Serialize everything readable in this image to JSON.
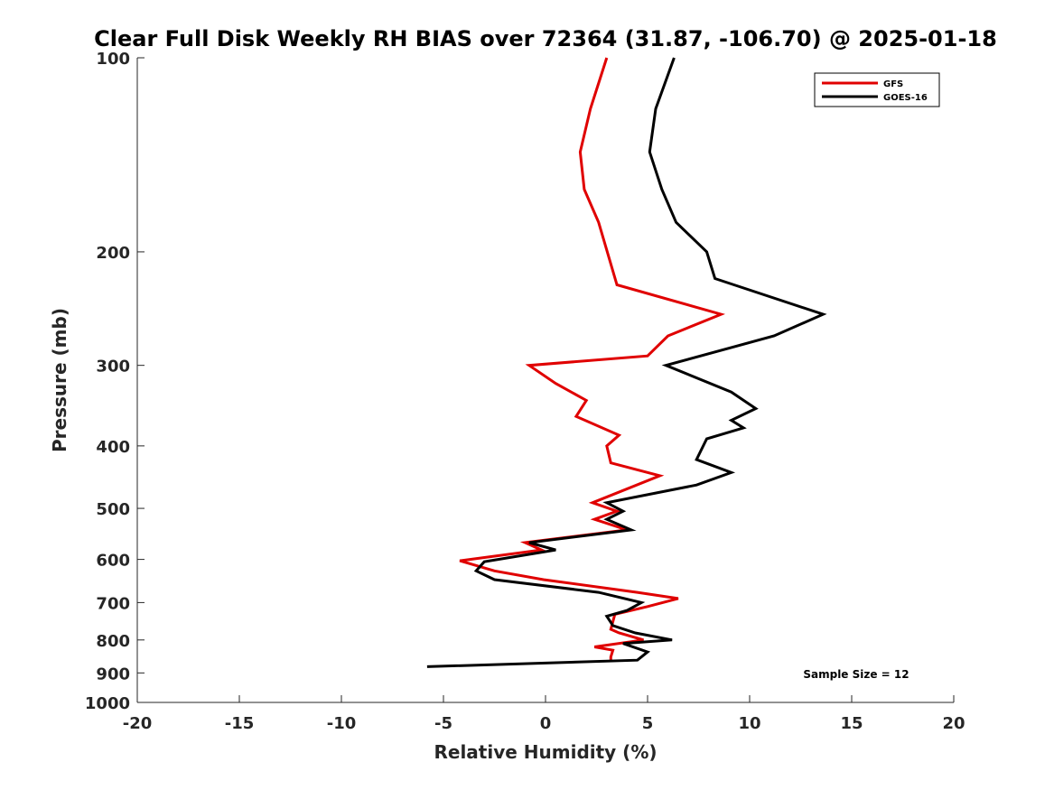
{
  "chart_data": {
    "type": "line",
    "title": "Clear Full Disk Weekly RH BIAS over 72364 (31.87, -106.70) @ 2025-01-18",
    "xlabel": "Relative Humidity (%)",
    "ylabel": "Pressure (mb)",
    "xlim": [
      -20,
      20
    ],
    "ylim": [
      100,
      1000
    ],
    "y_scale": "log",
    "y_reversed": true,
    "grid": false,
    "legend_position": "top-right",
    "x_ticks": [
      "-20",
      "-15",
      "-10",
      "-5",
      "0",
      "5",
      "10",
      "15",
      "20"
    ],
    "y_ticks": [
      "100",
      "200",
      "300",
      "400",
      "500",
      "600",
      "700",
      "800",
      "900",
      "1000"
    ],
    "annotation": "Sample Size = 12",
    "series": [
      {
        "name": "GFS",
        "color": "#e00000",
        "points": [
          [
            3.0,
            100
          ],
          [
            2.2,
            120
          ],
          [
            1.7,
            140
          ],
          [
            1.9,
            160
          ],
          [
            2.6,
            180
          ],
          [
            3.5,
            225
          ],
          [
            8.6,
            250
          ],
          [
            6.0,
            270
          ],
          [
            5.0,
            290
          ],
          [
            -0.8,
            300
          ],
          [
            0.5,
            320
          ],
          [
            2.0,
            340
          ],
          [
            1.5,
            360
          ],
          [
            3.6,
            385
          ],
          [
            3.0,
            400
          ],
          [
            3.2,
            425
          ],
          [
            5.6,
            445
          ],
          [
            2.3,
            490
          ],
          [
            3.5,
            505
          ],
          [
            2.4,
            520
          ],
          [
            4.0,
            540
          ],
          [
            -1.0,
            565
          ],
          [
            -0.2,
            580
          ],
          [
            -4.2,
            603
          ],
          [
            -2.5,
            625
          ],
          [
            -0.1,
            645
          ],
          [
            4.5,
            675
          ],
          [
            6.5,
            690
          ],
          [
            5.0,
            710
          ],
          [
            3.4,
            730
          ],
          [
            3.2,
            770
          ],
          [
            3.6,
            780
          ],
          [
            4.8,
            800
          ],
          [
            2.4,
            820
          ],
          [
            3.3,
            830
          ],
          [
            3.2,
            850
          ],
          [
            3.2,
            865
          ]
        ]
      },
      {
        "name": "GOES-16",
        "color": "#000000",
        "points": [
          [
            6.3,
            100
          ],
          [
            5.4,
            120
          ],
          [
            5.1,
            140
          ],
          [
            5.7,
            160
          ],
          [
            6.4,
            180
          ],
          [
            7.9,
            200
          ],
          [
            8.3,
            220
          ],
          [
            13.6,
            250
          ],
          [
            11.2,
            270
          ],
          [
            5.9,
            300
          ],
          [
            9.1,
            330
          ],
          [
            10.3,
            350
          ],
          [
            9.1,
            365
          ],
          [
            9.7,
            375
          ],
          [
            7.9,
            390
          ],
          [
            7.4,
            420
          ],
          [
            9.1,
            440
          ],
          [
            7.4,
            460
          ],
          [
            3.0,
            490
          ],
          [
            3.8,
            505
          ],
          [
            3.0,
            520
          ],
          [
            4.2,
            540
          ],
          [
            -0.8,
            565
          ],
          [
            0.5,
            580
          ],
          [
            -3.0,
            605
          ],
          [
            -3.4,
            625
          ],
          [
            -2.5,
            645
          ],
          [
            2.6,
            675
          ],
          [
            4.7,
            700
          ],
          [
            4.0,
            720
          ],
          [
            3.0,
            735
          ],
          [
            3.3,
            760
          ],
          [
            4.4,
            780
          ],
          [
            6.2,
            800
          ],
          [
            3.8,
            810
          ],
          [
            5.0,
            835
          ],
          [
            4.7,
            850
          ],
          [
            4.5,
            860
          ],
          [
            -5.8,
            880
          ]
        ]
      }
    ]
  }
}
